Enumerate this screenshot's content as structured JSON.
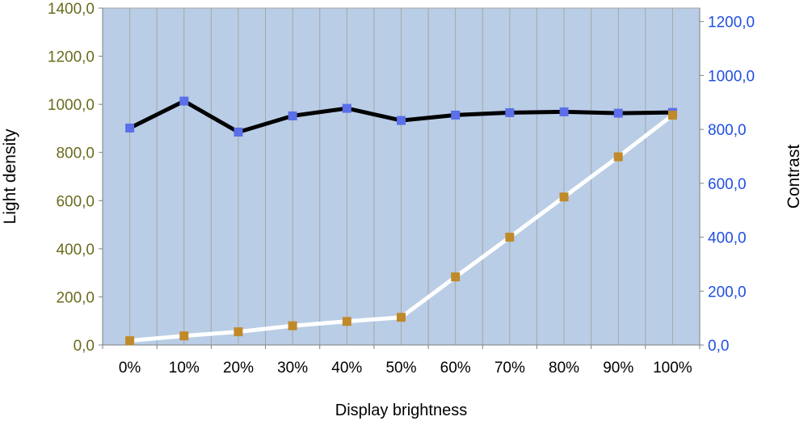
{
  "chart_data": {
    "type": "line",
    "xlabel": "Display brightness",
    "ylabel": "Light density",
    "y2label": "Contrast",
    "categories": [
      "0%",
      "10%",
      "20%",
      "30%",
      "40%",
      "50%",
      "60%",
      "70%",
      "80%",
      "90%",
      "100%"
    ],
    "ylim": [
      0,
      1400
    ],
    "y2lim": [
      0,
      1250
    ],
    "y_ticks": [
      "0,0",
      "200,0",
      "400,0",
      "600,0",
      "800,0",
      "1000,0",
      "1200,0",
      "1400,0"
    ],
    "y2_ticks": [
      "0,0",
      "200,0",
      "400,0",
      "600,0",
      "800,0",
      "1000,0",
      "1200,0"
    ],
    "grid": true,
    "colors": {
      "plot_bg": "#b9cde6",
      "grid": "#a6a6a6",
      "left_axis_text": "#6b6b1f",
      "right_axis_text": "#1f4fe0",
      "series1_line": "#000000",
      "series1_marker": "#5a6fe8",
      "series2_line": "#ffffff",
      "series2_marker": "#c08a2a"
    },
    "series": [
      {
        "axis": "right",
        "values": [
          805,
          905,
          790,
          850,
          878,
          833,
          853,
          862,
          865,
          860,
          863
        ]
      },
      {
        "axis": "left",
        "values": [
          18,
          38,
          55,
          80,
          98,
          115,
          283,
          448,
          615,
          782,
          955
        ]
      }
    ]
  }
}
